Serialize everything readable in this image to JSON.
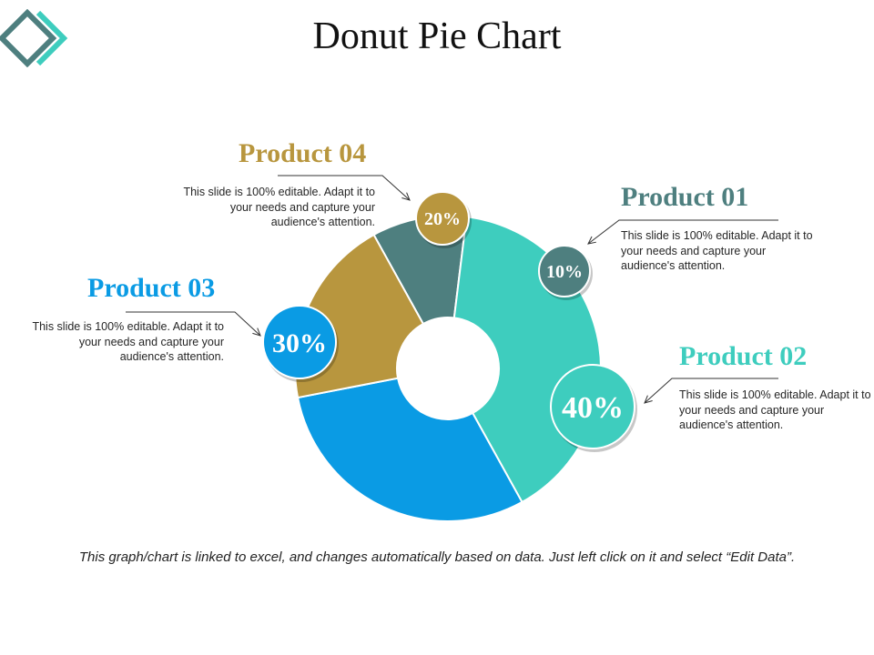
{
  "page": {
    "title": "Donut Pie Chart",
    "footer": "This graph/chart is linked to excel, and changes automatically based on data. Just left click on it and select “Edit Data”.",
    "logo_icon": "diamond-logo-icon"
  },
  "colors": {
    "product_01": "#4E7F7F",
    "product_02": "#3ECDBE",
    "product_03": "#0A9BE4",
    "product_04": "#B8963E",
    "connector": "#333333"
  },
  "chart_data": {
    "type": "pie",
    "donut": true,
    "title": "Donut Pie Chart",
    "slices": [
      {
        "name": "Product 01",
        "value": 10,
        "label": "10%",
        "color": "#4E7F7F",
        "description": "This slide is 100% editable. Adapt it to your needs and capture your audience's attention."
      },
      {
        "name": "Product 02",
        "value": 40,
        "label": "40%",
        "color": "#3ECDBE",
        "description": "This slide is 100% editable. Adapt it to your needs and capture your audience's attention."
      },
      {
        "name": "Product 03",
        "value": 30,
        "label": "30%",
        "color": "#0A9BE4",
        "description": "This slide is 100% editable. Adapt it to your needs and capture your audience's attention."
      },
      {
        "name": "Product 04",
        "value": 20,
        "label": "20%",
        "color": "#B8963E",
        "description": "This slide is 100% editable. Adapt it to your needs and capture your audience's attention."
      }
    ]
  },
  "products": [
    {
      "title": "Product 01",
      "desc_lines": [
        "This slide is 100% editable. Adapt it to",
        "your needs and capture your",
        "audience's attention."
      ]
    },
    {
      "title": "Product 02",
      "desc_lines": [
        "This slide is 100% editable. Adapt it to",
        "your needs and capture your",
        "audience's attention."
      ]
    },
    {
      "title": "Product 03",
      "desc_lines": [
        "This slide is 100% editable. Adapt it to",
        "your needs and capture your",
        "audience's attention."
      ]
    },
    {
      "title": "Product 04",
      "desc_lines": [
        "This slide is 100% editable. Adapt it to",
        "your needs and capture your",
        "audience's attention."
      ]
    }
  ]
}
